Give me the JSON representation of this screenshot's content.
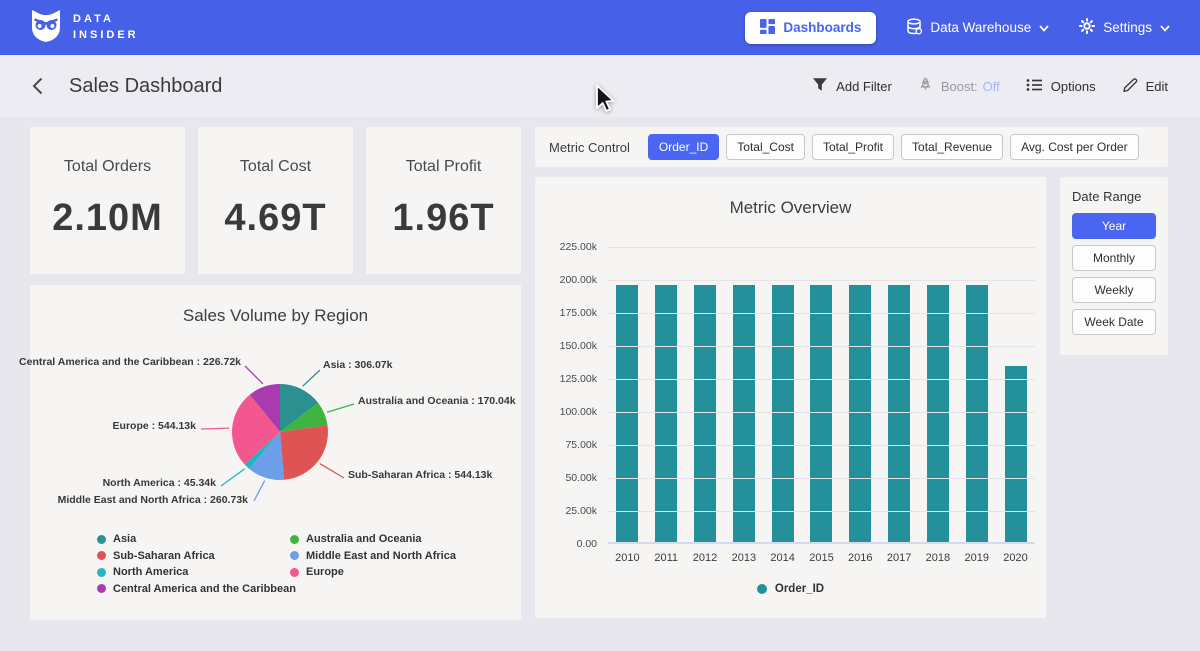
{
  "nav": {
    "brand_line1": "DATA",
    "brand_line2": "INSIDER",
    "items": [
      {
        "label": "Dashboards",
        "active": true
      },
      {
        "label": "Data Warehouse",
        "dropdown": true
      },
      {
        "label": "Settings",
        "dropdown": true
      }
    ]
  },
  "header": {
    "title": "Sales Dashboard",
    "actions": [
      {
        "label": "Add Filter"
      },
      {
        "label": "Boost:",
        "value": "Off"
      },
      {
        "label": "Options"
      },
      {
        "label": "Edit"
      }
    ]
  },
  "kpis": [
    {
      "label": "Total Orders",
      "value": "2.10M"
    },
    {
      "label": "Total Cost",
      "value": "4.69T"
    },
    {
      "label": "Total Profit",
      "value": "1.96T"
    }
  ],
  "metric_control": {
    "label": "Metric Control",
    "options": [
      {
        "label": "Order_ID",
        "selected": true
      },
      {
        "label": "Total_Cost",
        "selected": false
      },
      {
        "label": "Total_Profit",
        "selected": false
      },
      {
        "label": "Total_Revenue",
        "selected": false
      },
      {
        "label": "Avg. Cost per Order",
        "selected": false
      }
    ]
  },
  "date_range": {
    "label": "Date Range",
    "options": [
      {
        "label": "Year",
        "selected": true
      },
      {
        "label": "Monthly",
        "selected": false
      },
      {
        "label": "Weekly",
        "selected": false
      },
      {
        "label": "Week Date",
        "selected": false
      }
    ]
  },
  "colors": {
    "navbar_blue": "#4660e8",
    "accent_blue": "#4b66f0",
    "bar_teal": "#23909a",
    "boost_off": "#aab6f8"
  },
  "chart_data": [
    {
      "type": "bar",
      "title": "Metric Overview",
      "categories": [
        "2010",
        "2011",
        "2012",
        "2013",
        "2014",
        "2015",
        "2016",
        "2017",
        "2018",
        "2019",
        "2020"
      ],
      "series": [
        {
          "name": "Order_ID",
          "color": "#23909a",
          "values": [
            196200,
            196200,
            196200,
            196200,
            196200,
            196200,
            196200,
            196200,
            196200,
            196200,
            135200
          ]
        }
      ],
      "xlabel": "",
      "ylabel": "",
      "ylim": [
        0,
        225000
      ],
      "grid": true,
      "legend_position": "bottom",
      "yticks": [
        {
          "value": 0,
          "label": "0.00"
        },
        {
          "value": 25000,
          "label": "25.00k"
        },
        {
          "value": 50000,
          "label": "50.00k"
        },
        {
          "value": 75000,
          "label": "75.00k"
        },
        {
          "value": 100000,
          "label": "100.00k"
        },
        {
          "value": 125000,
          "label": "125.00k"
        },
        {
          "value": 150000,
          "label": "150.00k"
        },
        {
          "value": 175000,
          "label": "175.00k"
        },
        {
          "value": 200000,
          "label": "200.00k"
        },
        {
          "value": 225000,
          "label": "225.00k"
        }
      ]
    },
    {
      "type": "pie",
      "title": "Sales Volume by Region",
      "slices": [
        {
          "label": "Asia",
          "value": 306070,
          "display": "306.07k",
          "color": "#2a9190"
        },
        {
          "label": "Australia and Oceania",
          "value": 170040,
          "display": "170.04k",
          "color": "#3fb53f"
        },
        {
          "label": "Sub-Saharan Africa",
          "value": 544130,
          "display": "544.13k",
          "color": "#de5454"
        },
        {
          "label": "Middle East and North Africa",
          "value": 260730,
          "display": "260.73k",
          "color": "#6c9eea"
        },
        {
          "label": "North America",
          "value": 45340,
          "display": "45.34k",
          "color": "#24b5c5"
        },
        {
          "label": "Europe",
          "value": 544130,
          "display": "544.13k",
          "color": "#f2578f"
        },
        {
          "label": "Central America and the Caribbean",
          "value": 226720,
          "display": "226.72k",
          "color": "#a93ab0"
        }
      ],
      "legend_columns": [
        [
          0,
          2,
          4,
          6
        ],
        [
          1,
          3,
          5
        ]
      ],
      "legend_position": "bottom"
    }
  ]
}
